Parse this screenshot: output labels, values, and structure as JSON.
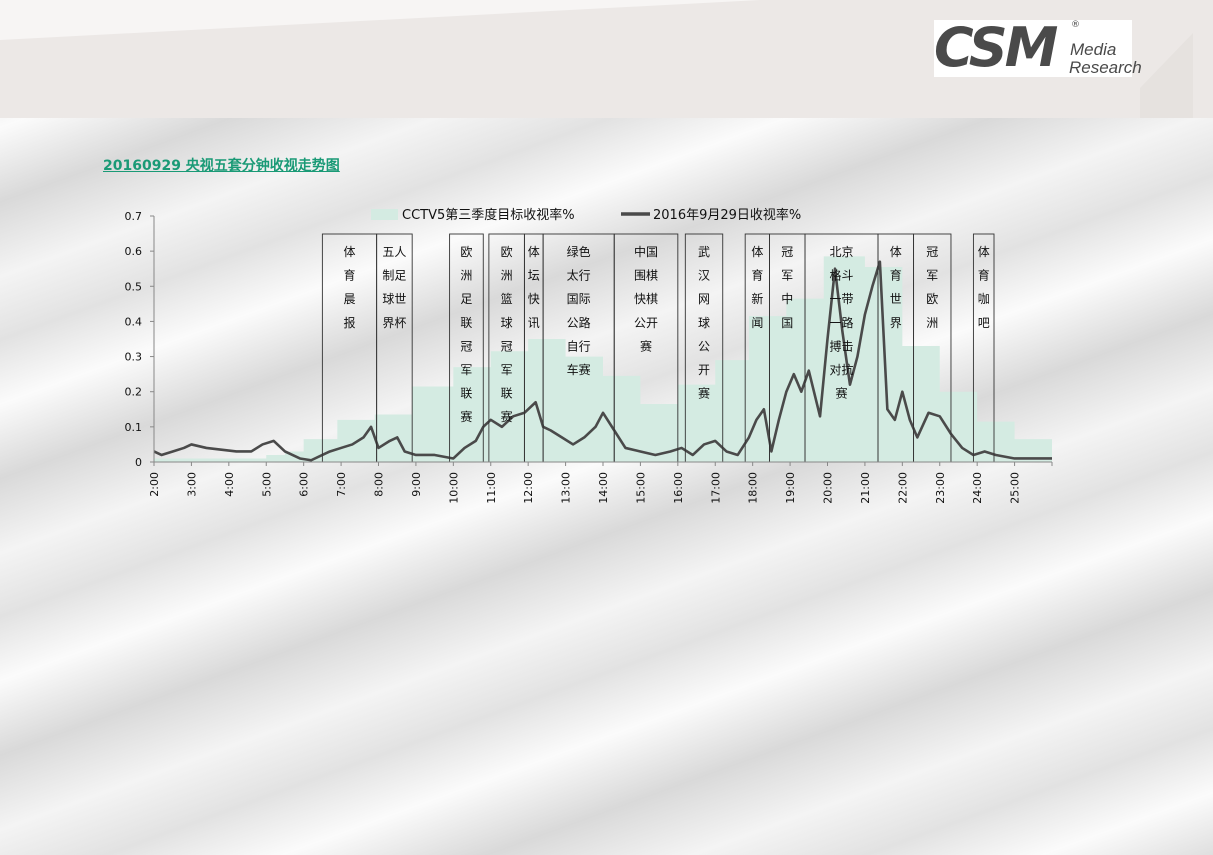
{
  "logo": {
    "main": "CSM",
    "line1": "Media",
    "line2": "Research",
    "reg": "®"
  },
  "title": "20160929 央视五套分钟收视走势图",
  "colors": {
    "accent": "#1a9a76",
    "area": "#d4ebe2",
    "line": "#4a4a4a",
    "band": "#ece8e6"
  },
  "chart_data": {
    "type": "area",
    "x_unit": "hour",
    "xlim": [
      2,
      26
    ],
    "x_ticks": [
      "2:00",
      "3:00",
      "4:00",
      "5:00",
      "6:00",
      "7:00",
      "8:00",
      "9:00",
      "10:00",
      "11:00",
      "12:00",
      "13:00",
      "14:00",
      "15:00",
      "16:00",
      "17:00",
      "18:00",
      "19:00",
      "20:00",
      "21:00",
      "22:00",
      "23:00",
      "24:00",
      "25:00"
    ],
    "y_ticks": [
      "0",
      "0.1",
      "0.2",
      "0.3",
      "0.4",
      "0.5",
      "0.6",
      "0.7"
    ],
    "ylim": [
      0,
      0.7
    ],
    "legend_position": "top",
    "series": [
      {
        "name": "CCTV5第三季度目标收视率%",
        "kind": "area",
        "steps": [
          [
            2.0,
            0.01
          ],
          [
            3.0,
            0.01
          ],
          [
            4.0,
            0.01
          ],
          [
            5.0,
            0.02
          ],
          [
            5.5,
            0.03
          ],
          [
            6.0,
            0.065
          ],
          [
            6.9,
            0.12
          ],
          [
            7.9,
            0.135
          ],
          [
            8.9,
            0.215
          ],
          [
            10.0,
            0.27
          ],
          [
            11.0,
            0.315
          ],
          [
            12.0,
            0.35
          ],
          [
            13.0,
            0.3
          ],
          [
            14.0,
            0.245
          ],
          [
            15.0,
            0.165
          ],
          [
            16.0,
            0.22
          ],
          [
            17.0,
            0.29
          ],
          [
            17.9,
            0.415
          ],
          [
            18.9,
            0.465
          ],
          [
            19.9,
            0.585
          ],
          [
            21.0,
            0.555
          ],
          [
            22.0,
            0.33
          ],
          [
            23.0,
            0.2
          ],
          [
            24.0,
            0.115
          ],
          [
            25.0,
            0.065
          ],
          [
            26.0,
            0.065
          ]
        ]
      },
      {
        "name": "2016年9月29日收视率%",
        "kind": "line",
        "points": [
          [
            2.0,
            0.03
          ],
          [
            2.2,
            0.02
          ],
          [
            2.5,
            0.03
          ],
          [
            2.8,
            0.04
          ],
          [
            3.0,
            0.05
          ],
          [
            3.4,
            0.04
          ],
          [
            3.8,
            0.035
          ],
          [
            4.2,
            0.03
          ],
          [
            4.6,
            0.03
          ],
          [
            4.9,
            0.05
          ],
          [
            5.2,
            0.06
          ],
          [
            5.5,
            0.03
          ],
          [
            5.7,
            0.02
          ],
          [
            5.9,
            0.01
          ],
          [
            6.2,
            0.005
          ],
          [
            6.5,
            0.02
          ],
          [
            6.7,
            0.03
          ],
          [
            7.0,
            0.04
          ],
          [
            7.3,
            0.05
          ],
          [
            7.6,
            0.07
          ],
          [
            7.8,
            0.1
          ],
          [
            8.0,
            0.04
          ],
          [
            8.3,
            0.06
          ],
          [
            8.5,
            0.07
          ],
          [
            8.7,
            0.03
          ],
          [
            9.0,
            0.02
          ],
          [
            9.5,
            0.02
          ],
          [
            10.0,
            0.01
          ],
          [
            10.3,
            0.04
          ],
          [
            10.6,
            0.06
          ],
          [
            10.8,
            0.1
          ],
          [
            11.0,
            0.12
          ],
          [
            11.3,
            0.1
          ],
          [
            11.6,
            0.13
          ],
          [
            11.9,
            0.14
          ],
          [
            12.2,
            0.17
          ],
          [
            12.4,
            0.1
          ],
          [
            12.6,
            0.09
          ],
          [
            12.9,
            0.07
          ],
          [
            13.2,
            0.05
          ],
          [
            13.5,
            0.07
          ],
          [
            13.8,
            0.1
          ],
          [
            14.0,
            0.14
          ],
          [
            14.3,
            0.09
          ],
          [
            14.6,
            0.04
          ],
          [
            15.0,
            0.03
          ],
          [
            15.4,
            0.02
          ],
          [
            15.8,
            0.03
          ],
          [
            16.1,
            0.04
          ],
          [
            16.4,
            0.02
          ],
          [
            16.7,
            0.05
          ],
          [
            17.0,
            0.06
          ],
          [
            17.3,
            0.03
          ],
          [
            17.6,
            0.02
          ],
          [
            17.9,
            0.07
          ],
          [
            18.1,
            0.12
          ],
          [
            18.3,
            0.15
          ],
          [
            18.5,
            0.03
          ],
          [
            18.7,
            0.12
          ],
          [
            18.9,
            0.2
          ],
          [
            19.1,
            0.25
          ],
          [
            19.3,
            0.2
          ],
          [
            19.5,
            0.26
          ],
          [
            19.8,
            0.13
          ],
          [
            20.0,
            0.35
          ],
          [
            20.2,
            0.55
          ],
          [
            20.4,
            0.37
          ],
          [
            20.6,
            0.22
          ],
          [
            20.8,
            0.3
          ],
          [
            21.0,
            0.42
          ],
          [
            21.2,
            0.5
          ],
          [
            21.4,
            0.57
          ],
          [
            21.6,
            0.15
          ],
          [
            21.8,
            0.12
          ],
          [
            22.0,
            0.2
          ],
          [
            22.2,
            0.12
          ],
          [
            22.4,
            0.07
          ],
          [
            22.7,
            0.14
          ],
          [
            23.0,
            0.13
          ],
          [
            23.3,
            0.08
          ],
          [
            23.6,
            0.04
          ],
          [
            23.9,
            0.02
          ],
          [
            24.2,
            0.03
          ],
          [
            24.5,
            0.02
          ],
          [
            25.0,
            0.01
          ],
          [
            26.0,
            0.01
          ]
        ]
      }
    ],
    "program_boxes": [
      {
        "start": 6.5,
        "end": 7.95,
        "label": "体\n育\n晨\n报"
      },
      {
        "start": 7.95,
        "end": 8.9,
        "label": "五人\n制足\n球世\n界杯"
      },
      {
        "start": 9.9,
        "end": 10.8,
        "label": "欧\n洲\n足\n联\n冠\n军\n联\n赛"
      },
      {
        "start": 10.95,
        "end": 11.9,
        "label": "欧\n洲\n篮\n球\n冠\n军\n联\n赛"
      },
      {
        "start": 11.9,
        "end": 12.4,
        "label": "体\n坛\n快\n讯"
      },
      {
        "start": 12.4,
        "end": 14.3,
        "label": "绿色\n太行\n国际\n公路\n自行\n车赛"
      },
      {
        "start": 14.3,
        "end": 16.0,
        "label": "中国\n围棋\n快棋\n公开\n赛"
      },
      {
        "start": 16.2,
        "end": 17.2,
        "label": "武\n汉\n网\n球\n公\n开\n赛"
      },
      {
        "start": 17.8,
        "end": 18.45,
        "label": "体\n育\n新\n闻"
      },
      {
        "start": 18.45,
        "end": 19.4,
        "label": "冠\n军\n中\n国"
      },
      {
        "start": 19.4,
        "end": 21.35,
        "label": "北京\n格斗\n一带\n一路\n搏击\n对抗\n赛"
      },
      {
        "start": 21.35,
        "end": 22.3,
        "label": "体\n育\n世\n界"
      },
      {
        "start": 22.3,
        "end": 23.3,
        "label": "冠\n军\n欧\n洲"
      },
      {
        "start": 23.9,
        "end": 24.45,
        "label": "体\n育\n咖\n吧"
      }
    ]
  }
}
